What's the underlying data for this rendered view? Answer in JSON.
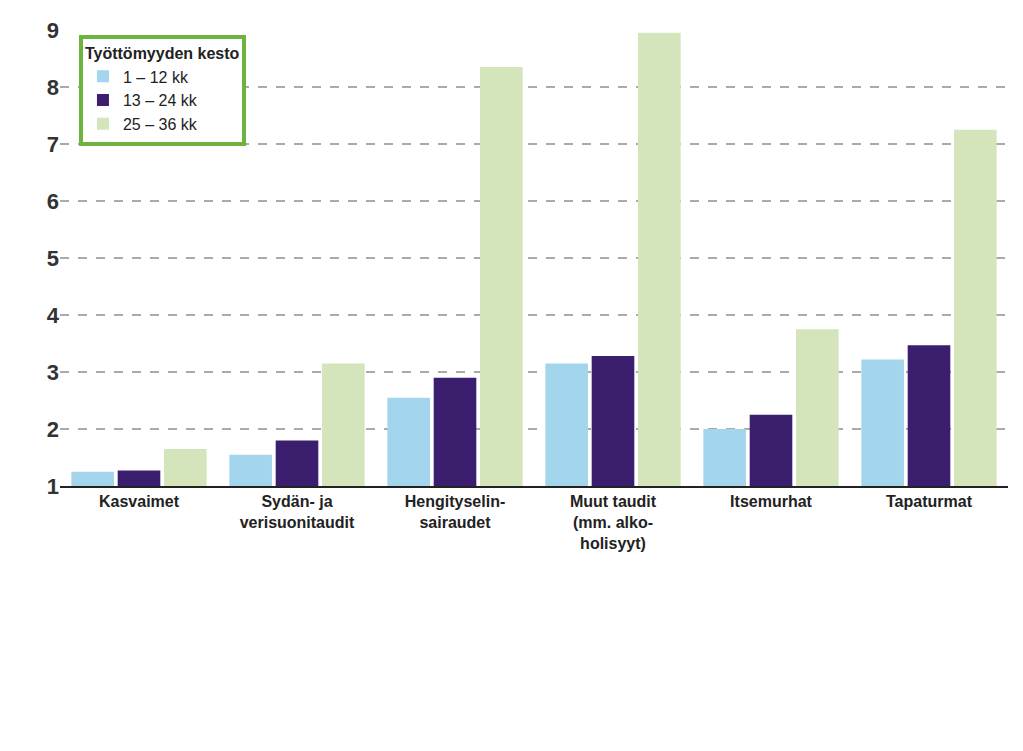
{
  "chart_data": {
    "type": "bar",
    "categories": [
      "Kasvaimet",
      "Sydän- ja\nverisuonitaudit",
      "Hengityselin-\nsairaudet",
      "Muut taudit\n(mm. alko-\nholisyyt)",
      "Itsemurhat",
      "Tapaturmat"
    ],
    "legend_title": "Työttömyyden kesto",
    "series": [
      {
        "name": "1 – 12 kk",
        "color": "#a3d5ec",
        "values": [
          1.25,
          1.55,
          2.55,
          3.15,
          2.0,
          3.22
        ]
      },
      {
        "name": "13 – 24 kk",
        "color": "#3b1f6e",
        "values": [
          1.27,
          1.8,
          2.9,
          3.28,
          2.25,
          3.47
        ]
      },
      {
        "name": "25 – 36 kk",
        "color": "#d4e5bb",
        "values": [
          1.65,
          3.15,
          8.35,
          8.95,
          3.75,
          7.25
        ]
      }
    ],
    "ylim": [
      1,
      9
    ],
    "yticks": [
      1,
      2,
      3,
      4,
      5,
      6,
      7,
      8,
      9
    ],
    "grid": true,
    "legend": "upper left"
  }
}
